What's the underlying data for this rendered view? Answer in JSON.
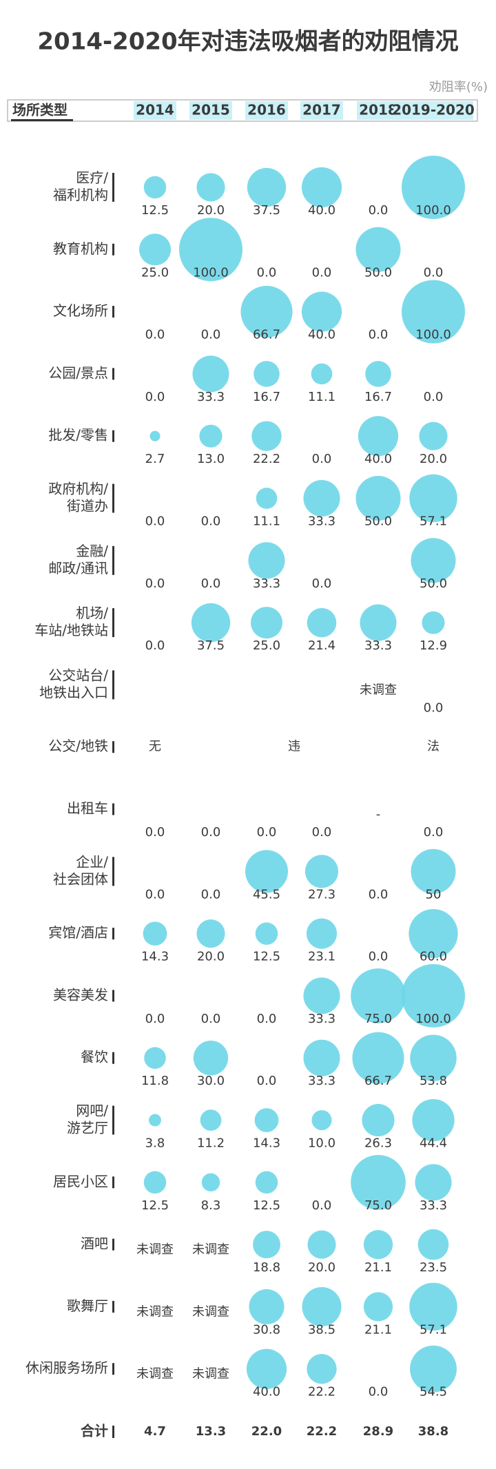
{
  "chart_data": {
    "type": "bubble-matrix",
    "title": "2014-2020年对违法吸烟者的劝阻情况",
    "size_label": "劝阻率(%)",
    "row_header": "场所类型",
    "color": "#6dd6e8",
    "columns": [
      "2014",
      "2015",
      "2016",
      "2017",
      "2018",
      "2019-2020"
    ],
    "series": [
      {
        "name": [
          "医疗/",
          "福利机构"
        ],
        "values": [
          12.5,
          20.0,
          37.5,
          40.0,
          0.0,
          100.0
        ],
        "value_labels": [
          "12.5",
          "20.0",
          "37.5",
          "40.0",
          "0.0",
          "100.0"
        ]
      },
      {
        "name": [
          "教育机构"
        ],
        "values": [
          25.0,
          100.0,
          0.0,
          0.0,
          50.0,
          0.0
        ],
        "value_labels": [
          "25.0",
          "100.0",
          "0.0",
          "0.0",
          "50.0",
          "0.0"
        ]
      },
      {
        "name": [
          "文化场所"
        ],
        "values": [
          0.0,
          0.0,
          66.7,
          40.0,
          0.0,
          100.0
        ],
        "value_labels": [
          "0.0",
          "0.0",
          "66.7",
          "40.0",
          "0.0",
          "100.0"
        ]
      },
      {
        "name": [
          "公园/景点"
        ],
        "values": [
          0.0,
          33.3,
          16.7,
          11.1,
          16.7,
          0.0
        ],
        "value_labels": [
          "0.0",
          "33.3",
          "16.7",
          "11.1",
          "16.7",
          "0.0"
        ]
      },
      {
        "name": [
          "批发/零售"
        ],
        "values": [
          2.7,
          13.0,
          22.2,
          0.0,
          40.0,
          20.0
        ],
        "value_labels": [
          "2.7",
          "13.0",
          "22.2",
          "0.0",
          "40.0",
          "20.0"
        ]
      },
      {
        "name": [
          "政府机构/",
          "街道办"
        ],
        "values": [
          0.0,
          0.0,
          11.1,
          33.3,
          50.0,
          57.1
        ],
        "value_labels": [
          "0.0",
          "0.0",
          "11.1",
          "33.3",
          "50.0",
          "57.1"
        ]
      },
      {
        "name": [
          "金融/",
          "邮政/通讯"
        ],
        "values": [
          0.0,
          0.0,
          33.3,
          0.0,
          null,
          50.0
        ],
        "value_labels": [
          "0.0",
          "0.0",
          "33.3",
          "0.0",
          null,
          "50.0"
        ]
      },
      {
        "name": [
          "机场/",
          "车站/地铁站"
        ],
        "values": [
          0.0,
          37.5,
          25.0,
          21.4,
          33.3,
          12.9
        ],
        "value_labels": [
          "0.0",
          "37.5",
          "25.0",
          "21.4",
          "33.3",
          "12.9"
        ]
      },
      {
        "name": [
          "公交站台/",
          "地铁出入口"
        ],
        "values": [
          null,
          null,
          null,
          null,
          null,
          0.0
        ],
        "value_labels": [
          null,
          null,
          null,
          null,
          "未调查",
          "0.0"
        ]
      },
      {
        "name": [
          "公交/地铁"
        ],
        "note": [
          "无",
          "违",
          "法"
        ]
      },
      {
        "name": [
          "出租车"
        ],
        "values": [
          0.0,
          0.0,
          0.0,
          0.0,
          null,
          0.0
        ],
        "value_labels": [
          "0.0",
          "0.0",
          "0.0",
          "0.0",
          "-",
          "0.0"
        ]
      },
      {
        "name": [
          "企业/",
          "社会团体"
        ],
        "values": [
          0.0,
          0.0,
          45.5,
          27.3,
          0.0,
          50
        ],
        "value_labels": [
          "0.0",
          "0.0",
          "45.5",
          "27.3",
          "0.0",
          "50"
        ]
      },
      {
        "name": [
          "宾馆/酒店"
        ],
        "values": [
          14.3,
          20.0,
          12.5,
          23.1,
          0.0,
          60.0
        ],
        "value_labels": [
          "14.3",
          "20.0",
          "12.5",
          "23.1",
          "0.0",
          "60.0"
        ]
      },
      {
        "name": [
          "美容美发"
        ],
        "values": [
          0.0,
          0.0,
          0.0,
          33.3,
          75.0,
          100.0
        ],
        "value_labels": [
          "0.0",
          "0.0",
          "0.0",
          "33.3",
          "75.0",
          "100.0"
        ]
      },
      {
        "name": [
          "餐饮"
        ],
        "values": [
          11.8,
          30.0,
          0.0,
          33.3,
          66.7,
          53.8
        ],
        "value_labels": [
          "11.8",
          "30.0",
          "0.0",
          "33.3",
          "66.7",
          "53.8"
        ]
      },
      {
        "name": [
          "网吧/",
          "游艺厅"
        ],
        "values": [
          3.8,
          11.2,
          14.3,
          10.0,
          26.3,
          44.4
        ],
        "value_labels": [
          "3.8",
          "11.2",
          "14.3",
          "10.0",
          "26.3",
          "44.4"
        ]
      },
      {
        "name": [
          "居民小区"
        ],
        "values": [
          12.5,
          8.3,
          12.5,
          0.0,
          75.0,
          33.3
        ],
        "value_labels": [
          "12.5",
          "8.3",
          "12.5",
          "0.0",
          "75.0",
          "33.3"
        ]
      },
      {
        "name": [
          "酒吧"
        ],
        "values": [
          null,
          null,
          18.8,
          20.0,
          21.1,
          23.5
        ],
        "value_labels": [
          "未调查",
          "未调查",
          "18.8",
          "20.0",
          "21.1",
          "23.5"
        ]
      },
      {
        "name": [
          "歌舞厅"
        ],
        "values": [
          null,
          null,
          30.8,
          38.5,
          21.1,
          57.1
        ],
        "value_labels": [
          "未调查",
          "未调查",
          "30.8",
          "38.5",
          "21.1",
          "57.1"
        ]
      },
      {
        "name": [
          "休闲服务场所"
        ],
        "values": [
          null,
          null,
          40.0,
          22.2,
          0.0,
          54.5
        ],
        "value_labels": [
          "未调查",
          "未调查",
          "40.0",
          "22.2",
          "0.0",
          "54.5"
        ]
      }
    ],
    "total": {
      "name": "合计",
      "values": [
        4.7,
        13.3,
        22.0,
        22.2,
        28.9,
        38.8
      ],
      "value_labels": [
        "4.7",
        "13.3",
        "22.0",
        "22.2",
        "28.9",
        "38.8"
      ]
    }
  }
}
